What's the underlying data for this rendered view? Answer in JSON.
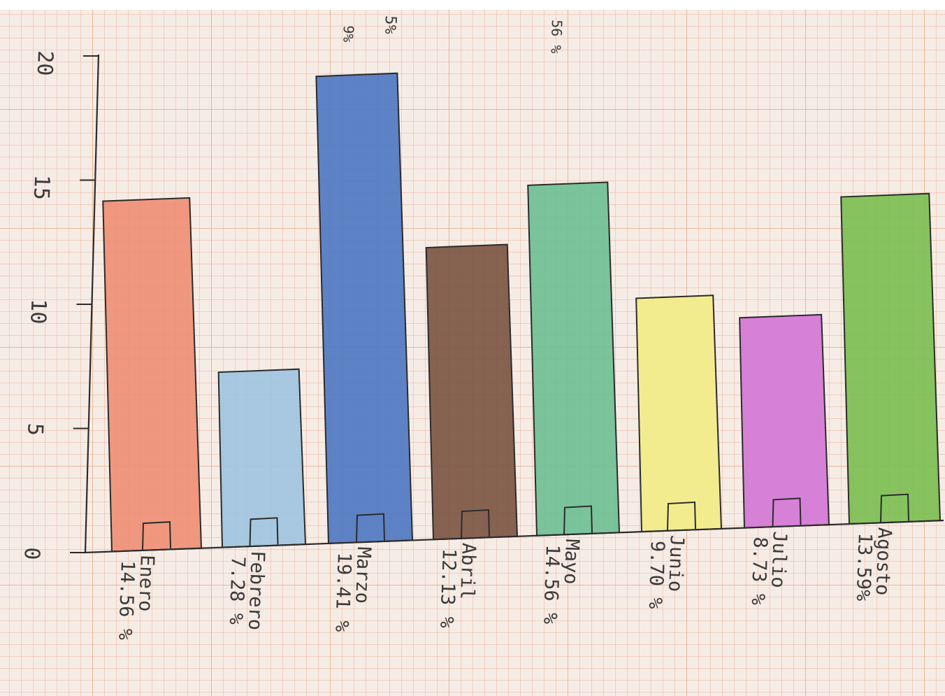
{
  "chart_data": {
    "type": "bar",
    "categories": [
      "Enero",
      "Febrero",
      "Marzo",
      "Abril",
      "Mayo",
      "Junio",
      "Julio",
      "Agosto"
    ],
    "values": [
      14.56,
      7.28,
      19.41,
      12.13,
      14.56,
      9.7,
      8.73,
      13.59
    ],
    "percent_labels": [
      "14.56 %",
      "7.28 %",
      "19.41 %",
      "12.13 %",
      "14.56 %",
      "9.70 %",
      "8.73 %",
      "13.59%"
    ],
    "bar_colors": [
      "#ef8f76",
      "#9fc4df",
      "#4f78c2",
      "#7c5644",
      "#6fbf95",
      "#f2ec88",
      "#d277d6",
      "#7cbe52"
    ],
    "yticks": [
      "0",
      "5",
      "10",
      "15",
      "20"
    ],
    "ylim": [
      0,
      20
    ],
    "grid": true,
    "legend": "none",
    "title": "",
    "xlabel": "",
    "ylabel": ""
  },
  "cropped_top_text": [
    "9%",
    "5%",
    "56 %"
  ]
}
